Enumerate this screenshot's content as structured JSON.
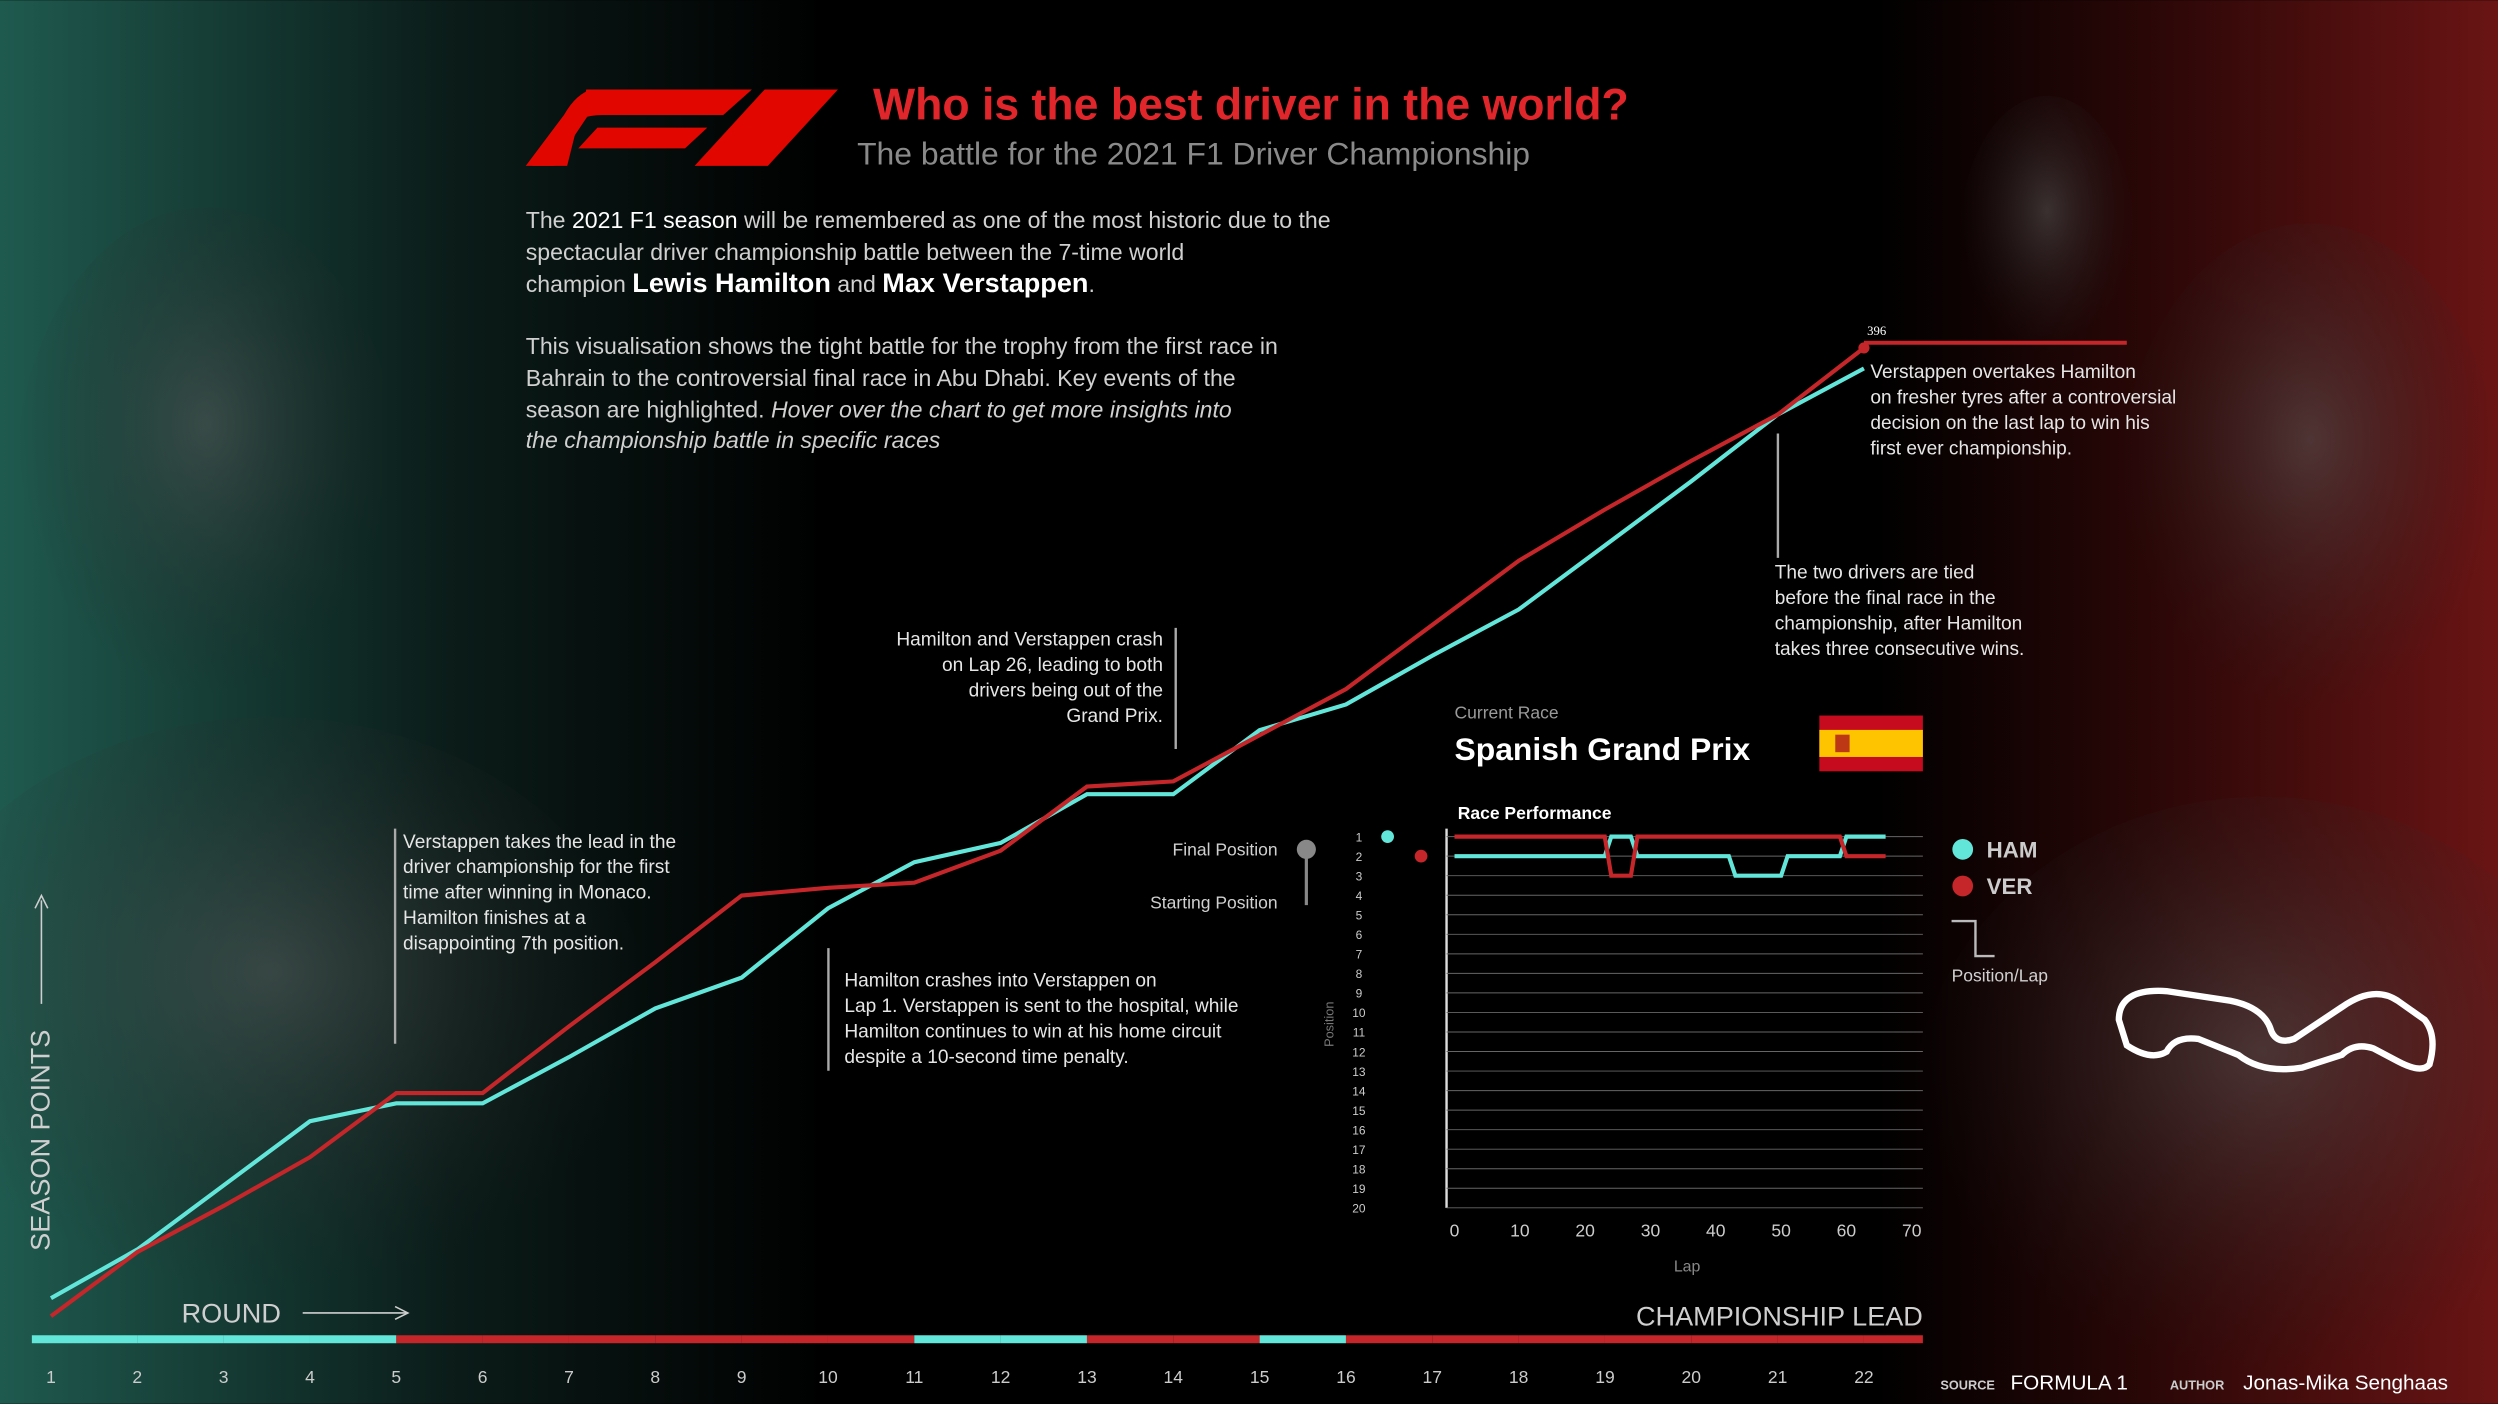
{
  "header": {
    "title": "Who is the best driver in the world?",
    "subtitle": "The battle for the 2021 F1 Driver Championship"
  },
  "intro": {
    "p1": [
      [
        "The ",
        "2021 F1 season",
        " will be remembered as one of the  most historic due to the"
      ],
      [
        "spectacular driver championship  battle between the 7-time world"
      ],
      [
        "champion ",
        "Lewis Hamilton",
        " and ",
        "Max Verstappen",
        "."
      ]
    ],
    "p2": [
      [
        "This visualisation shows the tight battle for the trophy from the first race in"
      ],
      [
        "Bahrain to the controversial final race in Abu Dhabi. Key events of the"
      ],
      [
        "season are  highlighted. ",
        "Hover over the chart to get more insights into"
      ],
      [
        "the championship battle in specific races"
      ]
    ]
  },
  "chart_data": [
    {
      "type": "line",
      "categories": [
        "1",
        "2",
        "3",
        "4",
        "5",
        "6",
        "7",
        "8",
        "9",
        "10",
        "11",
        "12",
        "13",
        "14",
        "15",
        "16",
        "17",
        "18",
        "19",
        "20",
        "21",
        "22"
      ],
      "series": [
        {
          "color": "#63e6da",
          "values": [
            25,
            44,
            69,
            94,
            101,
            101,
            119,
            138,
            150,
            177,
            195,
            202.5,
            221.5,
            221.5,
            246.5,
            256.5,
            275.5,
            293.5,
            318.5,
            343.5,
            369.5,
            387.5
          ]
        },
        {
          "color": "#c4262a",
          "values": [
            18,
            43,
            61,
            80,
            105,
            105,
            131,
            156,
            182,
            185,
            187,
            199.5,
            224.5,
            226.5,
            244.5,
            262.5,
            287.5,
            312.5,
            332.5,
            351.5,
            369.5,
            395.5
          ],
          "value_labels": [
            null,
            null,
            null,
            null,
            null,
            null,
            null,
            null,
            null,
            null,
            null,
            null,
            null,
            null,
            null,
            null,
            null,
            null,
            null,
            null,
            null,
            "396"
          ]
        }
      ],
      "ylim": [
        0,
        400
      ],
      "y_label": "SEASON POINTS",
      "x_label": "ROUND",
      "lead_label": "CHAMPIONSHIP LEAD",
      "annotations": [
        [
          "Verstappen takes the lead in the",
          "driver championship for the first",
          "time after winning in Monaco.",
          "Hamilton finishes at a",
          "disappointing 7th position."
        ],
        [
          "Hamilton crashes into Verstappen on",
          "Lap 1. Verstappen is sent to the hospital, while",
          "Hamilton continues to win at his home circuit",
          "despite a 10-second time penalty."
        ],
        [
          "Hamilton and Verstappen crash",
          "on Lap 26, leading to both",
          "drivers being out of the",
          "Grand Prix."
        ],
        [
          "The two drivers are tied",
          "before the final race in the",
          "championship, after Hamilton",
          "takes three consecutive wins."
        ],
        [
          "Verstappen overtakes Hamilton",
          "on fresher tyres after a controversial",
          "decision on the last lap to win his",
          "first ever championship."
        ]
      ]
    },
    {
      "type": "line",
      "title": "Race Performance",
      "current_label": "Current Race",
      "race": "Spanish Grand Prix",
      "x_label": "Lap",
      "y_label": "Position",
      "xlim": [
        0,
        70
      ],
      "xticks": [
        0,
        10,
        20,
        30,
        40,
        50,
        60,
        70
      ],
      "ylim": [
        1,
        20
      ],
      "y_inverted": true,
      "yticks": [
        1,
        2,
        3,
        4,
        5,
        6,
        7,
        8,
        9,
        10,
        11,
        12,
        13,
        14,
        15,
        16,
        17,
        18,
        19,
        20
      ],
      "grid": true,
      "final_label": "Final Position",
      "start_label": "Starting Position",
      "legend_label": "Position/Lap",
      "series": [
        {
          "name": "HAM",
          "color": "#63e6da",
          "start": 1,
          "x": [
            0,
            23,
            24,
            27,
            28,
            42,
            43,
            50,
            51,
            59,
            60,
            66
          ],
          "values": [
            2,
            2,
            1,
            1,
            2,
            2,
            3,
            3,
            2,
            2,
            1,
            1
          ]
        },
        {
          "name": "VER",
          "color": "#c4262a",
          "start": 2,
          "x": [
            0,
            23,
            24,
            27,
            28,
            59,
            60,
            66
          ],
          "values": [
            1,
            1,
            3,
            3,
            1,
            1,
            2,
            2
          ]
        }
      ]
    }
  ],
  "credits": {
    "source_label": "SOURCE",
    "source": "FORMULA 1",
    "author_label": "AUTHOR",
    "author": "Jonas-Mika Senghaas"
  }
}
